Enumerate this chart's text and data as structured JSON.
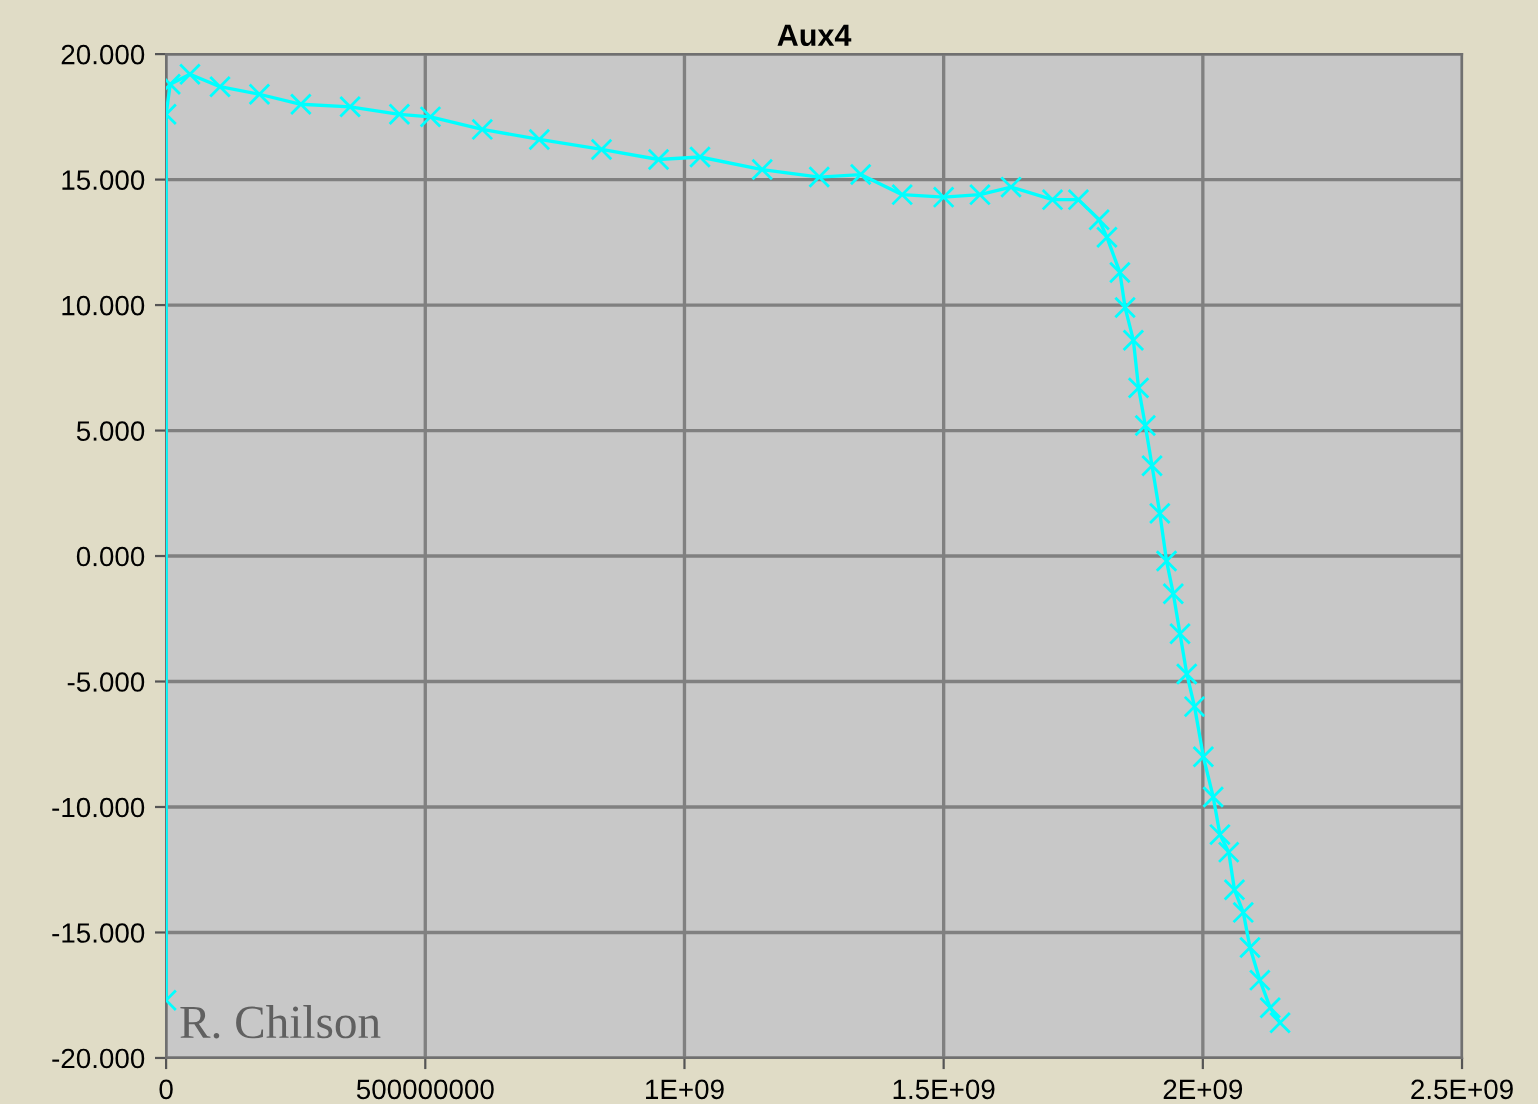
{
  "chart_data": {
    "type": "line",
    "title": "Aux4",
    "marker": "cross",
    "line_style": "solid",
    "grid": true,
    "legend": false,
    "annotations": [
      "R. Chilson"
    ],
    "xlim": [
      0,
      2500000000
    ],
    "xticks": [
      0,
      500000000,
      {
        "value": 1000000000,
        "label": "1E+09"
      },
      {
        "value": 1500000000,
        "label": "1.5E+09"
      },
      {
        "value": 2000000000,
        "label": "2E+09"
      },
      {
        "value": 2500000000,
        "label": "2.5E+09"
      }
    ],
    "ylim": [
      -20,
      20
    ],
    "yticks": [
      {
        "value": -20,
        "label": "-20.000"
      },
      {
        "value": -15,
        "label": "-15.000"
      },
      {
        "value": -10,
        "label": "-10.000"
      },
      {
        "value": -5,
        "label": "-5.000"
      },
      {
        "value": 0,
        "label": "0.000"
      },
      {
        "value": 5,
        "label": "5.000"
      },
      {
        "value": 10,
        "label": "10.000"
      },
      {
        "value": 15,
        "label": "15.000"
      },
      {
        "value": 20,
        "label": "20.000"
      }
    ],
    "series": [
      {
        "color": "#00ffff",
        "x": [
          0,
          0,
          8000000,
          46000000,
          104000000,
          180000000,
          260000000,
          355000000,
          450000000,
          510000000,
          610000000,
          720000000,
          840000000,
          950000000,
          1030000000,
          1150000000,
          1260000000,
          1340000000,
          1420000000,
          1500000000,
          1570000000,
          1630000000,
          1710000000,
          1760000000,
          1800000000,
          1815000000,
          1840000000,
          1850000000,
          1866000000,
          1876000000,
          1889000000,
          1902000000,
          1917000000,
          1930000000,
          1943000000,
          1956000000,
          1969000000,
          1984000000,
          2001000000,
          2020000000,
          2033000000,
          2050000000,
          2061000000,
          2078000000,
          2091000000,
          2110000000,
          2130000000,
          2149000000
        ],
        "values": [
          -17.7,
          17.6,
          18.8,
          19.2,
          18.7,
          18.4,
          18.0,
          17.9,
          17.6,
          17.5,
          17.0,
          16.6,
          16.2,
          15.8,
          15.9,
          15.4,
          15.1,
          15.2,
          14.4,
          14.3,
          14.4,
          14.7,
          14.2,
          14.2,
          13.4,
          12.7,
          11.3,
          9.9,
          8.6,
          6.7,
          5.2,
          3.6,
          1.7,
          -0.2,
          -1.5,
          -3.1,
          -4.7,
          -6.0,
          -8.0,
          -9.6,
          -11.1,
          -11.8,
          -13.3,
          -14.2,
          -15.6,
          -16.9,
          -18.0,
          -18.6
        ]
      }
    ]
  }
}
